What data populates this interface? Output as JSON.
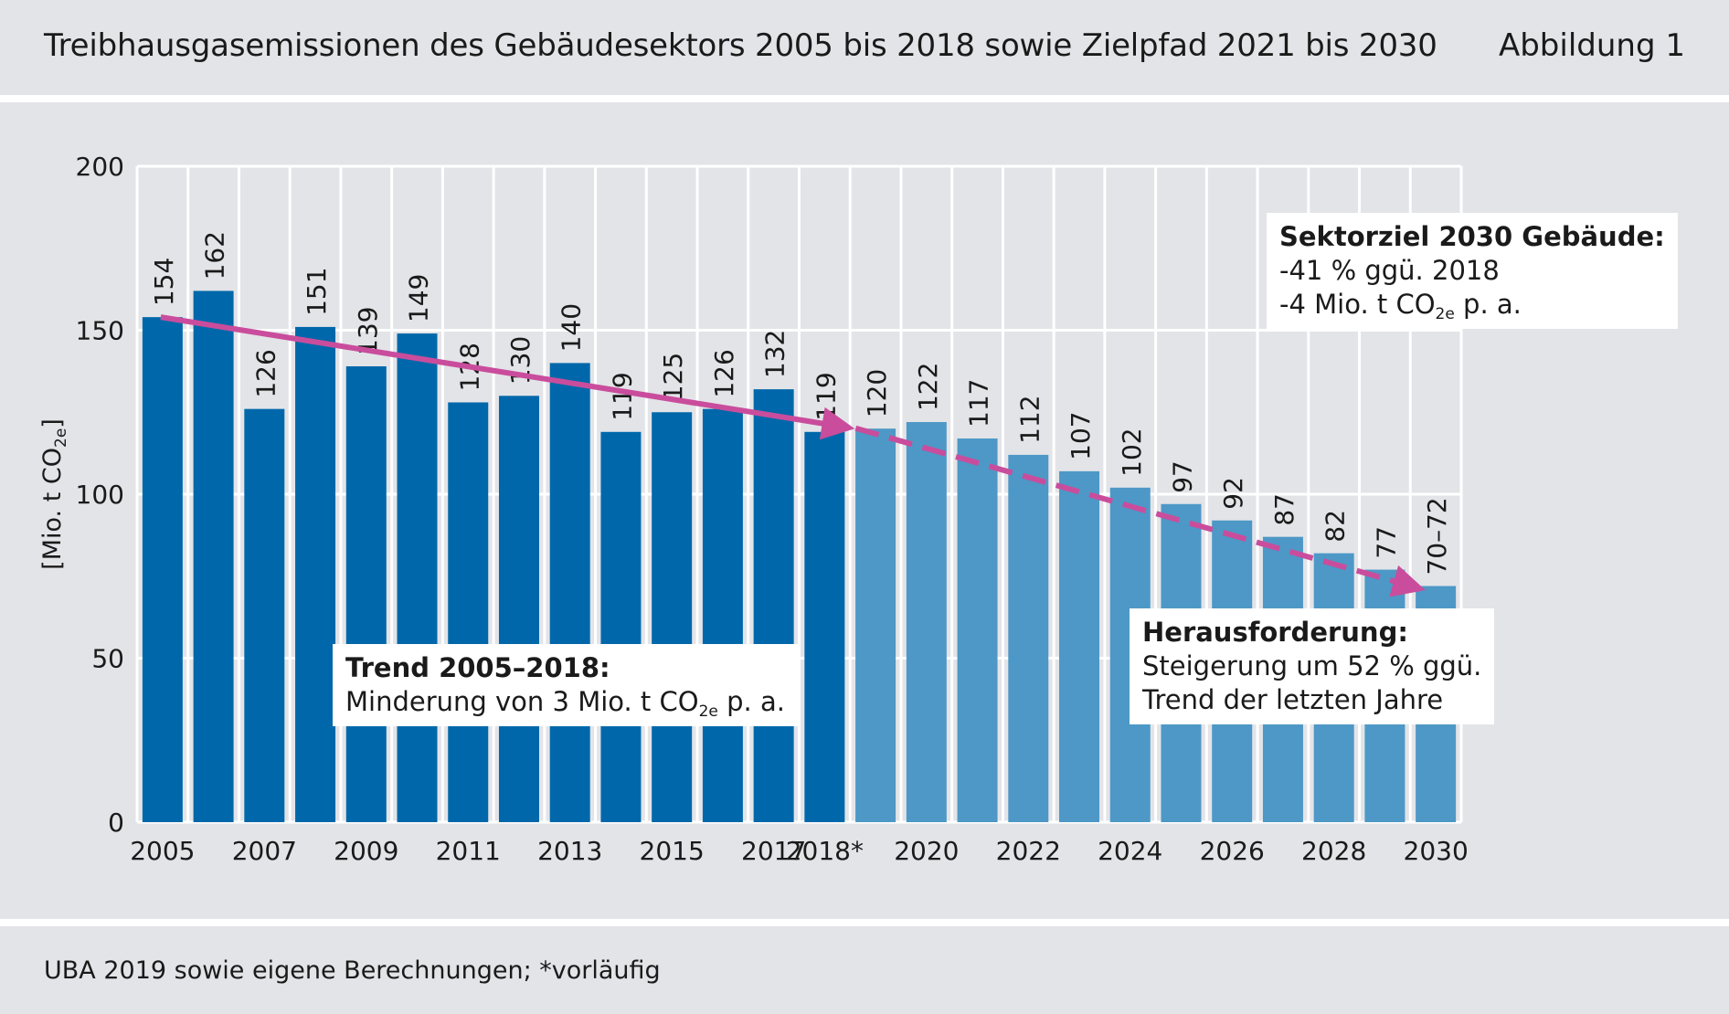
{
  "header": {
    "title": "Treibhausgasemissionen des Gebäudesektors 2005 bis 2018 sowie Zielpfad 2021 bis 2030",
    "figure_label": "Abbildung 1"
  },
  "footer": {
    "source": "UBA 2019 sowie eigene Berechnungen; *vorläufig"
  },
  "colors": {
    "historic": "#0068aa",
    "target": "#4d98c6",
    "trend_arrow": "#c94d9c",
    "background": "#e3e4e8"
  },
  "chart_data": {
    "type": "bar",
    "title": "Treibhausgasemissionen des Gebäudesektors 2005 bis 2018 sowie Zielpfad 2021 bis 2030",
    "ylabel": "[Mio. t CO2e]",
    "ylim": [
      0,
      200
    ],
    "yticks": [
      0,
      50,
      100,
      150,
      200
    ],
    "categories": [
      "2005",
      "2006",
      "2007",
      "2008",
      "2009",
      "2010",
      "2011",
      "2012",
      "2013",
      "2014",
      "2015",
      "2016",
      "2017",
      "2018*",
      "2019",
      "2020",
      "2021",
      "2022",
      "2023",
      "2024",
      "2025",
      "2026",
      "2027",
      "2028",
      "2029",
      "2030"
    ],
    "x_tick_labels": [
      "2005",
      "",
      "2007",
      "",
      "2009",
      "",
      "2011",
      "",
      "2013",
      "",
      "2015",
      "",
      "2017",
      "2018*",
      "",
      "2020",
      "",
      "2022",
      "",
      "2024",
      "",
      "2026",
      "",
      "2028",
      "",
      "2030"
    ],
    "values": [
      154,
      162,
      126,
      151,
      139,
      149,
      128,
      130,
      140,
      119,
      125,
      126,
      132,
      119,
      120,
      122,
      117,
      112,
      107,
      102,
      97,
      92,
      87,
      82,
      77,
      72
    ],
    "value_labels": [
      "154",
      "162",
      "126",
      "151",
      "139",
      "149",
      "128",
      "130",
      "140",
      "119",
      "125",
      "126",
      "132",
      "119",
      "120",
      "122",
      "117",
      "112",
      "107",
      "102",
      "97",
      "92",
      "87",
      "82",
      "77",
      "70–72"
    ],
    "series_type": [
      "historic",
      "historic",
      "historic",
      "historic",
      "historic",
      "historic",
      "historic",
      "historic",
      "historic",
      "historic",
      "historic",
      "historic",
      "historic",
      "historic",
      "target",
      "target",
      "target",
      "target",
      "target",
      "target",
      "target",
      "target",
      "target",
      "target",
      "target",
      "target"
    ],
    "trend_line": {
      "from": [
        "2005",
        154
      ],
      "to": [
        "2018*",
        119
      ],
      "style": "solid arrow"
    },
    "target_line": {
      "from": [
        "2018*",
        119
      ],
      "to": [
        "2030",
        72
      ],
      "style": "dashed arrow"
    },
    "annotations": [
      {
        "name": "trend",
        "heading": "Trend 2005–2018:",
        "line1_pre": "Minderung von 3 Mio. t CO",
        "line1_sub": "2e",
        "line1_post": " p. a."
      },
      {
        "name": "sector-target",
        "heading": "Sektorziel 2030 Gebäude:",
        "line1": "-41 % ggü. 2018",
        "line2_pre": "-4 Mio. t CO",
        "line2_sub": "2e",
        "line2_post": " p. a."
      },
      {
        "name": "challenge",
        "heading": "Herausforderung:",
        "line1": "Steigerung um 52 % ggü.",
        "line2": "Trend der letzten Jahre"
      }
    ]
  }
}
